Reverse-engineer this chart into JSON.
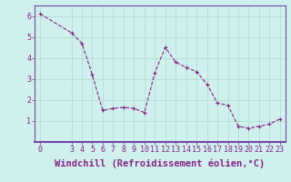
{
  "x": [
    0,
    3,
    4,
    5,
    6,
    7,
    8,
    9,
    10,
    11,
    12,
    13,
    14,
    15,
    16,
    17,
    18,
    19,
    20,
    21,
    22,
    23
  ],
  "y": [
    6.1,
    5.2,
    4.7,
    3.2,
    1.5,
    1.6,
    1.65,
    1.6,
    1.4,
    3.3,
    4.5,
    3.8,
    3.55,
    3.35,
    2.75,
    1.85,
    1.75,
    0.75,
    0.65,
    0.75,
    0.85,
    1.1
  ],
  "line_color": "#882288",
  "marker": "+",
  "marker_size": 3.5,
  "marker_linewidth": 0.8,
  "background_color": "#cff0ec",
  "grid_color": "#aaddcc",
  "spine_color": "#7744aa",
  "xlabel": "Windchill (Refroidissement éolien,°C)",
  "xlabel_color": "#882288",
  "xlim": [
    -0.5,
    23.5
  ],
  "ylim": [
    0,
    6.5
  ],
  "xticks": [
    0,
    3,
    4,
    5,
    6,
    7,
    8,
    9,
    10,
    11,
    12,
    13,
    14,
    15,
    16,
    17,
    18,
    19,
    20,
    21,
    22,
    23
  ],
  "yticks": [
    1,
    2,
    3,
    4,
    5,
    6
  ],
  "tick_fontsize": 6,
  "xlabel_fontsize": 7.5,
  "line_width": 0.8,
  "grid_linewidth": 0.5
}
